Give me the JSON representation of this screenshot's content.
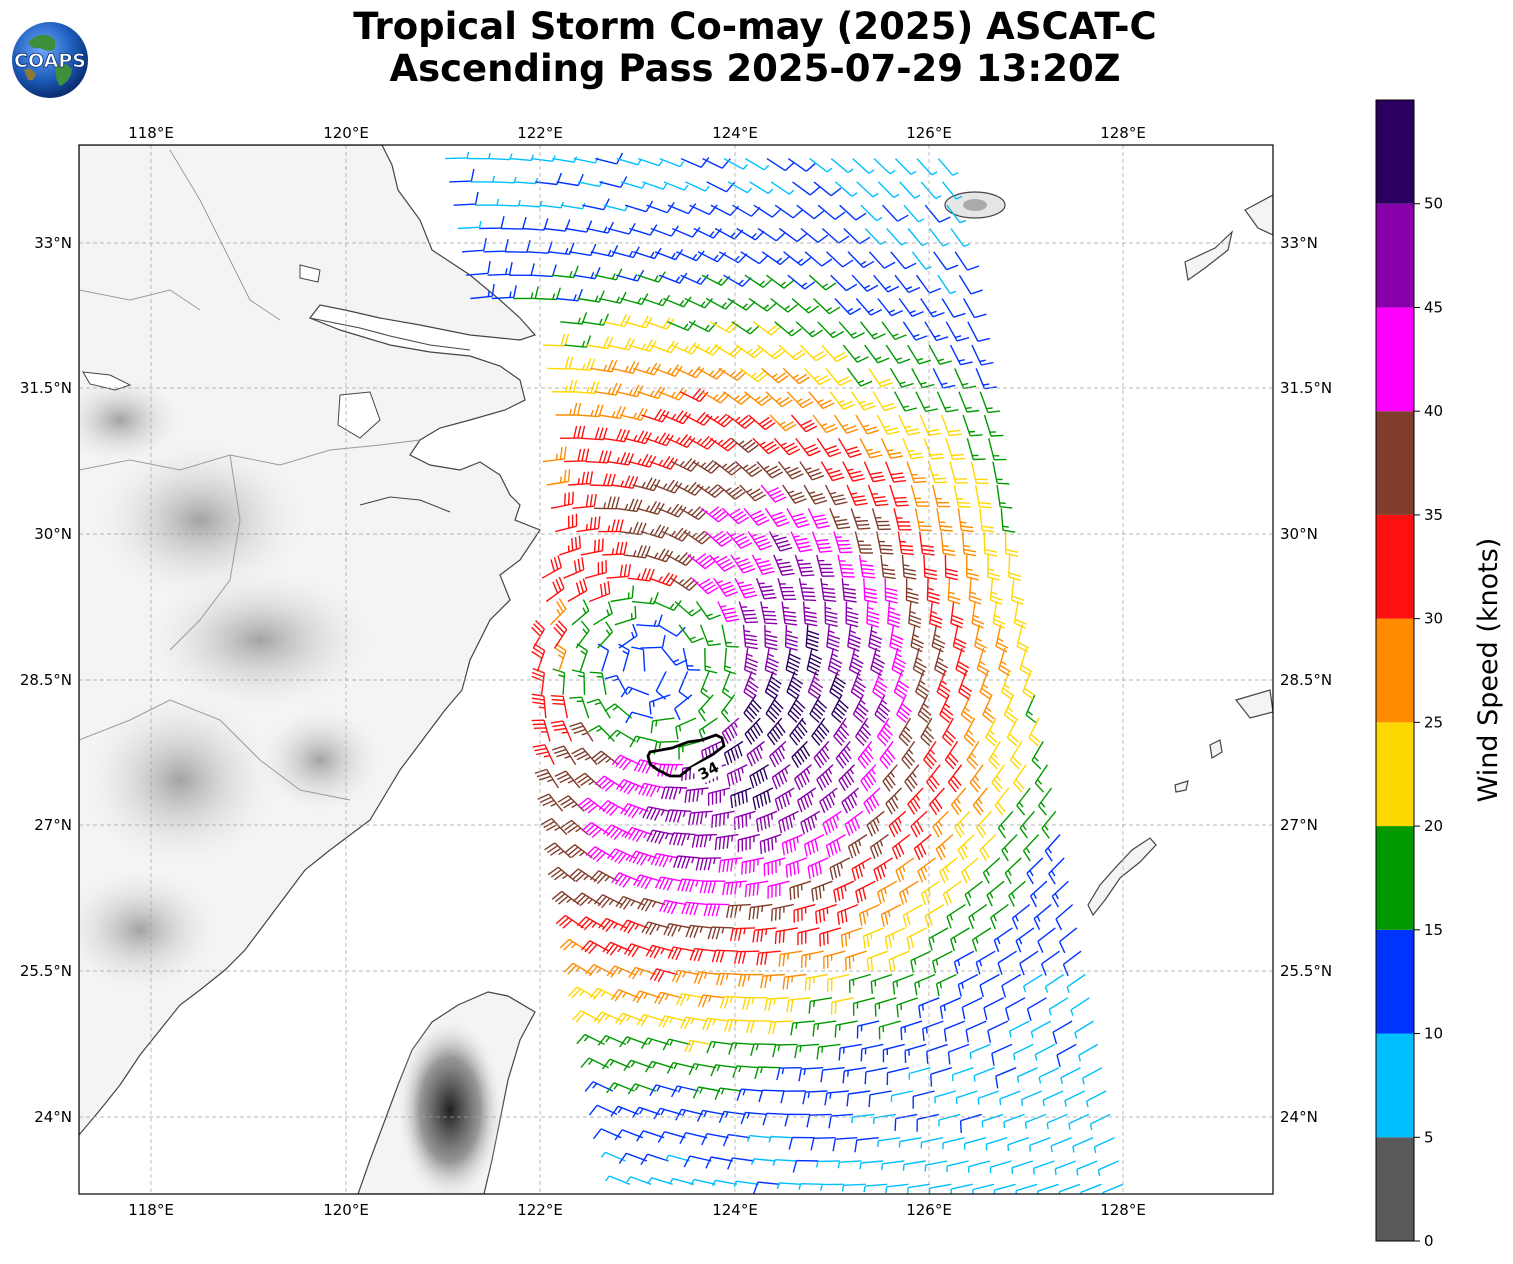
{
  "title_line1": "Tropical Storm Co-may (2025) ASCAT-C",
  "title_line2": "Ascending Pass 2025-07-29 13:20Z",
  "logo_text": "COAPS",
  "lon_ticks": [
    "118°E",
    "120°E",
    "122°E",
    "124°E",
    "126°E",
    "128°E"
  ],
  "lat_ticks": [
    "33°N",
    "31.5°N",
    "30°N",
    "28.5°N",
    "27°N",
    "25.5°N",
    "24°N"
  ],
  "contour_label": "34",
  "colorbar": {
    "title": "Wind Speed (knots)",
    "tick_labels": [
      "0",
      "5",
      "10",
      "15",
      "20",
      "25",
      "30",
      "35",
      "40",
      "45",
      "50"
    ],
    "bins": [
      {
        "min": 0,
        "max": 5,
        "color": "#595959"
      },
      {
        "min": 5,
        "max": 10,
        "color": "#00bfff"
      },
      {
        "min": 10,
        "max": 15,
        "color": "#0033ff"
      },
      {
        "min": 15,
        "max": 20,
        "color": "#009900"
      },
      {
        "min": 20,
        "max": 25,
        "color": "#ffd700"
      },
      {
        "min": 25,
        "max": 30,
        "color": "#ff8c00"
      },
      {
        "min": 30,
        "max": 35,
        "color": "#ff0f0f"
      },
      {
        "min": 35,
        "max": 40,
        "color": "#803d2b"
      },
      {
        "min": 40,
        "max": 45,
        "color": "#ff00ff"
      },
      {
        "min": 45,
        "max": 50,
        "color": "#8800aa"
      },
      {
        "min": 50,
        "max": 55,
        "color": "#2b0060"
      }
    ]
  },
  "map_extent": {
    "lon_min": 117.25,
    "lon_max": 129.5,
    "lat_min": 23.2,
    "lat_max": 34.0
  },
  "storm_center": {
    "lon": 123.1,
    "lat": 28.6
  },
  "swath_bounds": {
    "north_lat": 33.9,
    "south_lat": 23.3,
    "west_lon_north": 121.0,
    "west_lon_south": 122.9,
    "east_lon_north": 126.2,
    "east_lon_south": 128.0
  }
}
